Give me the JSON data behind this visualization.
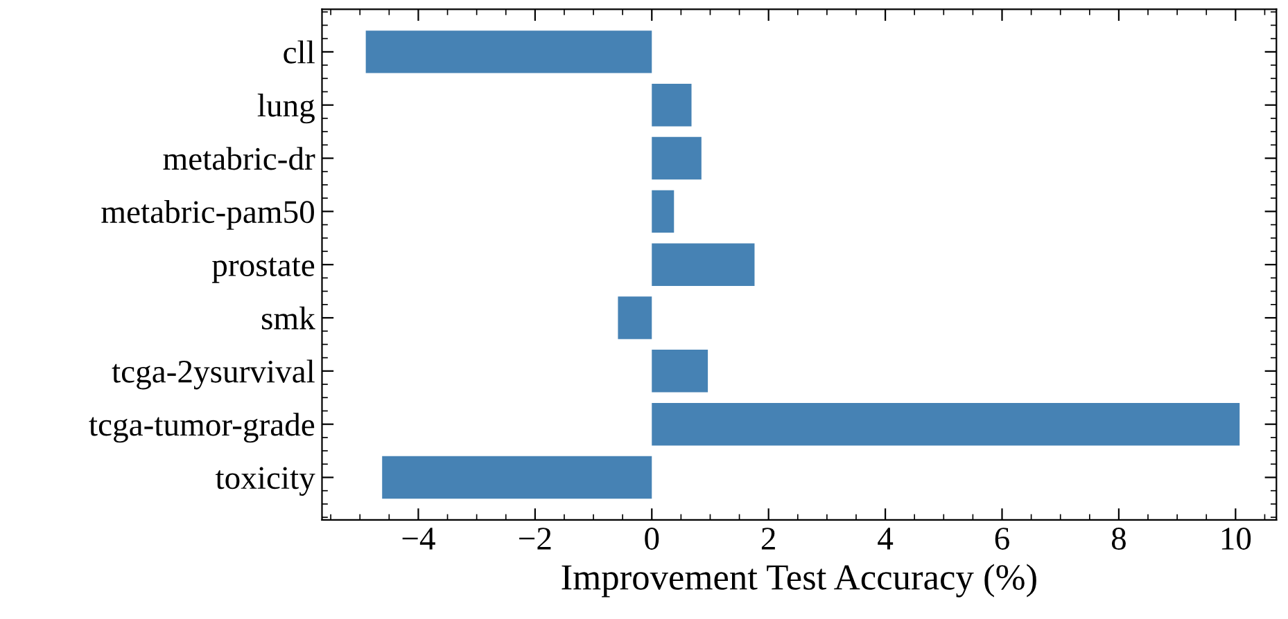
{
  "chart_data": {
    "type": "bar",
    "orientation": "horizontal",
    "xlabel": "Improvement Test Accuracy (%)",
    "categories": [
      "cll",
      "lung",
      "metabric-dr",
      "metabric-pam50",
      "prostate",
      "smk",
      "tcga-2ysurvival",
      "tcga-tumor-grade",
      "toxicity"
    ],
    "values": [
      -4.9,
      0.68,
      0.85,
      0.38,
      1.76,
      -0.58,
      0.96,
      10.07,
      -4.62
    ],
    "color": "#4682b4",
    "xlim": [
      -5.65,
      10.7
    ],
    "xticks": [
      {
        "value": -4,
        "label": "−4"
      },
      {
        "value": -2,
        "label": "−2"
      },
      0,
      2,
      4,
      6,
      8,
      10
    ],
    "grid": false,
    "legend": false
  }
}
